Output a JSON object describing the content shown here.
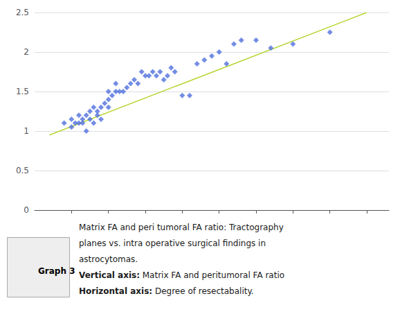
{
  "chart_data": {
    "type": "scatter",
    "title": "Graph 3",
    "annotations": [
      "Matrix FA and peri tumoral FA ratio: Tractography",
      "planes vs. intra operative surgical findings in",
      "astrocytomas.",
      "Vertical axis: Matrix FA and peritumoral FA ratio",
      "Horizontal axis: Degree of resectabality."
    ],
    "series": [
      {
        "type": "scatter",
        "marker": "diamond",
        "x": [
          2.9,
          3.0,
          3.0,
          3.05,
          3.1,
          3.1,
          3.15,
          3.15,
          3.2,
          3.2,
          3.25,
          3.25,
          3.3,
          3.3,
          3.35,
          3.35,
          3.4,
          3.4,
          3.45,
          3.5,
          3.5,
          3.5,
          3.55,
          3.6,
          3.6,
          3.65,
          3.7,
          3.75,
          3.8,
          3.85,
          3.9,
          3.95,
          4.0,
          4.05,
          4.1,
          4.15,
          4.2,
          4.25,
          4.3,
          4.35,
          4.4,
          4.5,
          4.6,
          4.7,
          4.8,
          4.9,
          5.0,
          5.1,
          5.2,
          5.3,
          5.5,
          5.7,
          6.0,
          6.5
        ],
        "values": [
          1.1,
          1.15,
          1.05,
          1.1,
          1.1,
          1.2,
          1.1,
          1.15,
          1.0,
          1.2,
          1.25,
          1.15,
          1.1,
          1.3,
          1.25,
          1.2,
          1.3,
          1.15,
          1.35,
          1.3,
          1.4,
          1.5,
          1.45,
          1.5,
          1.6,
          1.5,
          1.5,
          1.55,
          1.6,
          1.65,
          1.6,
          1.75,
          1.7,
          1.7,
          1.75,
          1.7,
          1.75,
          1.65,
          1.7,
          1.8,
          1.75,
          1.45,
          1.45,
          1.85,
          1.9,
          1.95,
          2.0,
          1.85,
          2.1,
          2.15,
          2.15,
          2.05,
          2.1,
          2.25
        ]
      },
      {
        "type": "line",
        "line_style": "solid",
        "x": [
          2.7,
          7.0
        ],
        "values": [
          0.95,
          2.5
        ]
      }
    ],
    "xlim": [
      2.5,
      7.3
    ],
    "xticks": [
      3,
      3.5,
      4,
      4.5,
      5,
      5.5,
      6,
      6.5,
      7
    ],
    "ylim": [
      0,
      2.5
    ],
    "yticks": [
      0,
      0.5,
      1,
      1.5,
      2,
      2.5
    ],
    "tick_labels": "y",
    "grid": true
  }
}
